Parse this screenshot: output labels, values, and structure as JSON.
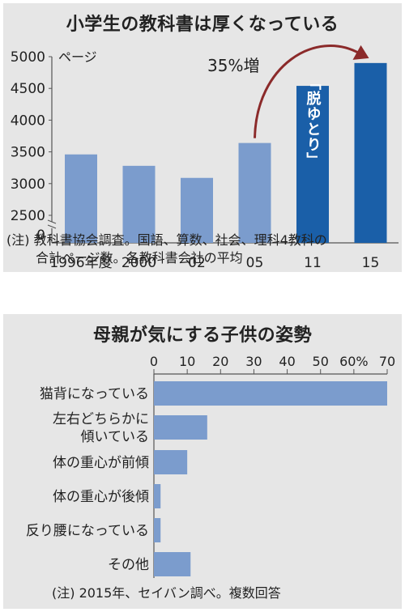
{
  "chart_data": [
    {
      "type": "bar",
      "title": "小学生の教科書は厚くなっている",
      "ylabel": "ページ",
      "categories": [
        "1996年度",
        "2000",
        "02",
        "05",
        "11",
        "15"
      ],
      "values": [
        3460,
        3280,
        3090,
        3640,
        4540,
        4900
      ],
      "ylim": [
        0,
        5000
      ],
      "yticks": [
        0,
        2500,
        3000,
        3500,
        4000,
        4500,
        5000
      ],
      "axis_break": true,
      "highlight_label": "「脱ゆとり」",
      "highlight_indices": [
        4,
        5
      ],
      "annotation": "35%増",
      "colors": {
        "normal": "#7b9ccd",
        "highlight": "#1a5fa8"
      },
      "note": [
        "(注) 教科書協会調査。国語、算数、社会、理科4教科の",
        "合計ページ数。各教科書会社の平均"
      ]
    },
    {
      "type": "bar",
      "orientation": "horizontal",
      "title": "母親が気にする子供の姿勢",
      "categories": [
        [
          "猫背になっている"
        ],
        [
          "左右どちらかに",
          "傾いている"
        ],
        [
          "体の重心が前傾"
        ],
        [
          "体の重心が後傾"
        ],
        [
          "反り腰になっている"
        ],
        [
          "その他"
        ]
      ],
      "values": [
        70,
        16,
        10,
        2,
        2,
        11
      ],
      "xlim": [
        0,
        70
      ],
      "xticks": [
        "0",
        "10",
        "20",
        "30",
        "40",
        "50",
        "60%",
        "70"
      ],
      "colors": {
        "bar": "#7b9ccd"
      },
      "note": [
        "(注) 2015年、セイバン調べ。複数回答"
      ]
    }
  ]
}
